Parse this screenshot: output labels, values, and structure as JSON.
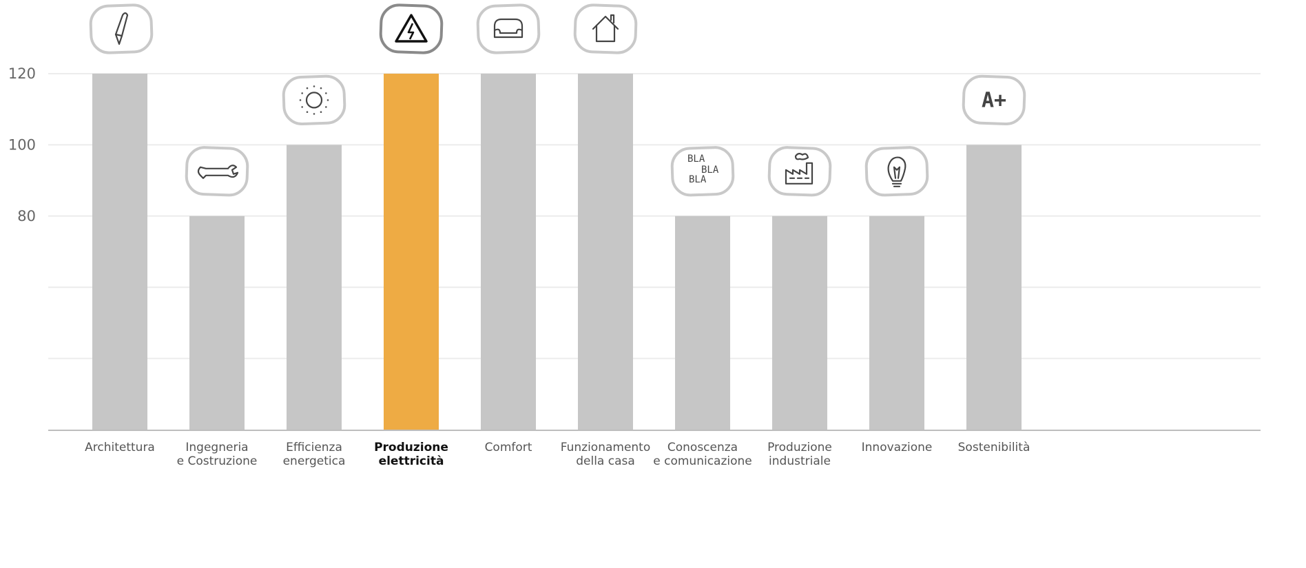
{
  "chart_data": {
    "type": "bar",
    "categories": [
      {
        "id": "architettura",
        "lines": [
          "Architettura"
        ],
        "bold": false
      },
      {
        "id": "ingegneria",
        "lines": [
          "Ingegneria",
          "e Costruzione"
        ],
        "bold": false
      },
      {
        "id": "efficienza",
        "lines": [
          "Efficienza",
          "energetica"
        ],
        "bold": false
      },
      {
        "id": "produzione-elettricita",
        "lines": [
          "Produzione",
          "elettricità"
        ],
        "bold": true
      },
      {
        "id": "comfort",
        "lines": [
          "Comfort"
        ],
        "bold": false
      },
      {
        "id": "funzionamento",
        "lines": [
          "Funzionamento",
          "della casa"
        ],
        "bold": false
      },
      {
        "id": "conoscenza",
        "lines": [
          "Conoscenza",
          "e comunicazione"
        ],
        "bold": false
      },
      {
        "id": "produzione-industriale",
        "lines": [
          "Produzione",
          "industriale"
        ],
        "bold": false
      },
      {
        "id": "innovazione",
        "lines": [
          "Innovazione"
        ],
        "bold": false
      },
      {
        "id": "sostenibilita",
        "lines": [
          "Sostenibilità"
        ],
        "bold": false
      }
    ],
    "values": [
      120,
      80,
      100,
      120,
      120,
      120,
      80,
      80,
      80,
      100
    ],
    "icons": [
      "pen-icon",
      "wrench-icon",
      "sun-icon",
      "high-voltage-icon",
      "armchair-icon",
      "house-icon",
      "bla-bla-icon",
      "factory-icon",
      "lightbulb-icon",
      "energy-rating-icon"
    ],
    "highlight_index": 3,
    "y_ticks": [
      {
        "value": 120,
        "label": "120"
      },
      {
        "value": 100,
        "label": "100"
      },
      {
        "value": 80,
        "label": "80"
      },
      {
        "value": 60,
        "label": ""
      },
      {
        "value": 40,
        "label": ""
      }
    ],
    "ylim": [
      20,
      120
    ],
    "grid": true,
    "title": "",
    "xlabel": "",
    "ylabel": "",
    "colors": {
      "bar": "#c6c6c6",
      "highlight": "#eeab44",
      "grid": "#ececec",
      "baseline": "#bdbdbd"
    },
    "icon_text": {
      "bla": [
        "BLA",
        "BLA",
        "BLA"
      ],
      "rating": "A+"
    }
  }
}
